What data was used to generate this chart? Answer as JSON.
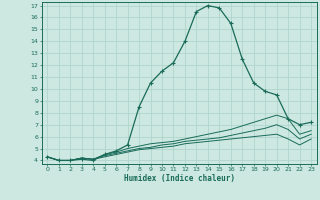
{
  "xlabel": "Humidex (Indice chaleur)",
  "bg_color": "#cce8e0",
  "grid_color": "#b0d5cc",
  "line_color": "#1a6b5a",
  "xlim": [
    -0.5,
    23.5
  ],
  "ylim": [
    3.7,
    17.3
  ],
  "xticks": [
    0,
    1,
    2,
    3,
    4,
    5,
    6,
    7,
    8,
    9,
    10,
    11,
    12,
    13,
    14,
    15,
    16,
    17,
    18,
    19,
    20,
    21,
    22,
    23
  ],
  "yticks": [
    4,
    5,
    6,
    7,
    8,
    9,
    10,
    11,
    12,
    13,
    14,
    15,
    16,
    17
  ],
  "series1_x": [
    0,
    1,
    2,
    3,
    4,
    5,
    6,
    7,
    8,
    9,
    10,
    11,
    12,
    13,
    14,
    15,
    16,
    17,
    18,
    19,
    20,
    21,
    22,
    23
  ],
  "series1_y": [
    4.3,
    4.0,
    4.0,
    4.1,
    4.0,
    4.5,
    4.8,
    5.3,
    8.5,
    10.5,
    11.5,
    12.2,
    14.0,
    16.5,
    17.0,
    16.8,
    15.5,
    12.5,
    10.5,
    9.8,
    9.5,
    7.5,
    7.0,
    7.2
  ],
  "series2_x": [
    0,
    1,
    2,
    3,
    4,
    5,
    6,
    7,
    8,
    9,
    10,
    11,
    12,
    13,
    14,
    15,
    16,
    17,
    18,
    19,
    20,
    21,
    22,
    23
  ],
  "series2_y": [
    4.3,
    4.0,
    4.0,
    4.2,
    4.1,
    4.5,
    4.7,
    5.0,
    5.2,
    5.4,
    5.5,
    5.6,
    5.8,
    6.0,
    6.2,
    6.4,
    6.6,
    6.9,
    7.2,
    7.5,
    7.8,
    7.5,
    6.2,
    6.5
  ],
  "series3_x": [
    0,
    1,
    2,
    3,
    4,
    5,
    6,
    7,
    8,
    9,
    10,
    11,
    12,
    13,
    14,
    15,
    16,
    17,
    18,
    19,
    20,
    21,
    22,
    23
  ],
  "series3_y": [
    4.3,
    4.0,
    4.0,
    4.2,
    4.1,
    4.4,
    4.6,
    4.8,
    5.0,
    5.1,
    5.3,
    5.4,
    5.6,
    5.7,
    5.8,
    5.9,
    6.1,
    6.3,
    6.5,
    6.7,
    7.0,
    6.6,
    5.8,
    6.2
  ],
  "series4_x": [
    0,
    1,
    2,
    3,
    4,
    5,
    6,
    7,
    8,
    9,
    10,
    11,
    12,
    13,
    14,
    15,
    16,
    17,
    18,
    19,
    20,
    21,
    22,
    23
  ],
  "series4_y": [
    4.3,
    4.0,
    4.0,
    4.2,
    4.1,
    4.3,
    4.5,
    4.7,
    4.9,
    5.0,
    5.1,
    5.2,
    5.4,
    5.5,
    5.6,
    5.7,
    5.8,
    5.9,
    6.0,
    6.1,
    6.2,
    5.8,
    5.3,
    5.8
  ]
}
